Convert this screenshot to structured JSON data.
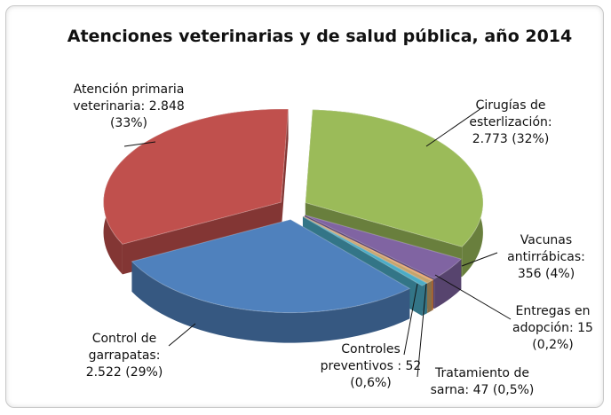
{
  "chart_data": {
    "type": "pie3d",
    "title": "Atenciones veterinarias y de salud pública, año 2014",
    "categories": [
      "Cirugías de esterlización:",
      "Vacunas antirrábicas:",
      "Entregas en adopción:",
      "Tratamiento de sarna:",
      "Controles preventivos :",
      "Control de garrapatas:",
      "Atención primaria veterinaria:"
    ],
    "values": [
      2773,
      356,
      15,
      47,
      52,
      2522,
      2848
    ],
    "value_labels": [
      "2.773",
      "356",
      "15",
      "47",
      "52",
      "2.522",
      "2.848"
    ],
    "percent_labels": [
      "(32%)",
      "(4%)",
      "(0,2%)",
      "(0,5%)",
      "(0,6%)",
      "(29%)",
      "(33%)"
    ],
    "colors": [
      "#9bbb59",
      "#8064a2",
      "#f79646",
      "#c6a36b",
      "#4bacc6",
      "#4f81bd",
      "#c0504d"
    ]
  }
}
